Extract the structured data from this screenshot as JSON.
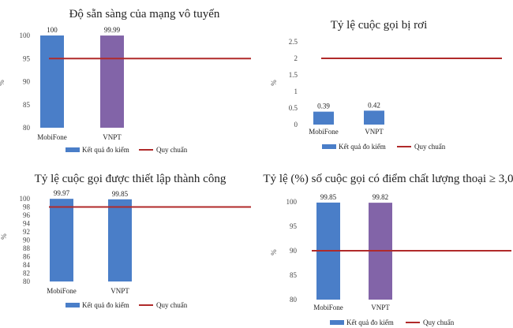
{
  "chart_data": [
    {
      "type": "bar",
      "title": "Độ sẵn sàng của mạng vô tuyến",
      "ylabel": "%",
      "categories": [
        "MobiFone",
        "VNPT"
      ],
      "ylim": [
        80,
        100
      ],
      "yticks": [
        80,
        85,
        90,
        95,
        100
      ],
      "series": [
        {
          "name": "Kết quả đo kiểm",
          "values": [
            100,
            99.99
          ],
          "value_labels": [
            "100",
            "99.99"
          ],
          "colors": [
            "#4a7ec8",
            "#8264a8"
          ]
        }
      ],
      "reference": {
        "name": "Quy chuẩn",
        "value": 95,
        "color": "#b02a2a"
      },
      "legend": "bottom",
      "grid": false
    },
    {
      "type": "bar",
      "title": "Tỷ lệ cuộc gọi bị rơi",
      "ylabel": "%",
      "categories": [
        "MobiFone",
        "VNPT"
      ],
      "ylim": [
        0,
        2.5
      ],
      "yticks": [
        0,
        0.5,
        1,
        1.5,
        2,
        2.5
      ],
      "series": [
        {
          "name": "Kết quả đo kiểm",
          "values": [
            0.39,
            0.42
          ],
          "value_labels": [
            "0.39",
            "0.42"
          ],
          "colors": [
            "#4a7ec8",
            "#4a7ec8"
          ]
        }
      ],
      "reference": {
        "name": "Quy chuẩn",
        "value": 2,
        "color": "#b02a2a"
      },
      "legend": "bottom",
      "grid": false
    },
    {
      "type": "bar",
      "title": "Tỷ lệ cuộc gọi được thiết lập thành công",
      "ylabel": "%",
      "categories": [
        "MobiFone",
        "VNPT"
      ],
      "ylim": [
        80,
        100
      ],
      "yticks": [
        80,
        82,
        84,
        86,
        88,
        90,
        92,
        94,
        96,
        98,
        100
      ],
      "series": [
        {
          "name": "Kết quả đo kiểm",
          "values": [
            99.97,
            99.85
          ],
          "value_labels": [
            "99.97",
            "99.85"
          ],
          "colors": [
            "#4a7ec8",
            "#4a7ec8"
          ]
        }
      ],
      "reference": {
        "name": "Quy chuẩn",
        "value": 98,
        "color": "#b02a2a"
      },
      "legend": "bottom",
      "grid": false
    },
    {
      "type": "bar",
      "title": "Tỷ lệ (%) số cuộc gọi có điểm chất lượng thoại ≥ 3,0",
      "ylabel": "%",
      "categories": [
        "MobiFone",
        "VNPT"
      ],
      "ylim": [
        80,
        100
      ],
      "yticks": [
        80,
        85,
        90,
        95,
        100
      ],
      "series": [
        {
          "name": "Kết quả đo kiểm",
          "values": [
            99.85,
            99.82
          ],
          "value_labels": [
            "99.85",
            "99.82"
          ],
          "colors": [
            "#4a7ec8",
            "#8264a8"
          ]
        }
      ],
      "reference": {
        "name": "Quy chuẩn",
        "value": 90,
        "color": "#b02a2a"
      },
      "legend": "bottom",
      "grid": false
    }
  ]
}
